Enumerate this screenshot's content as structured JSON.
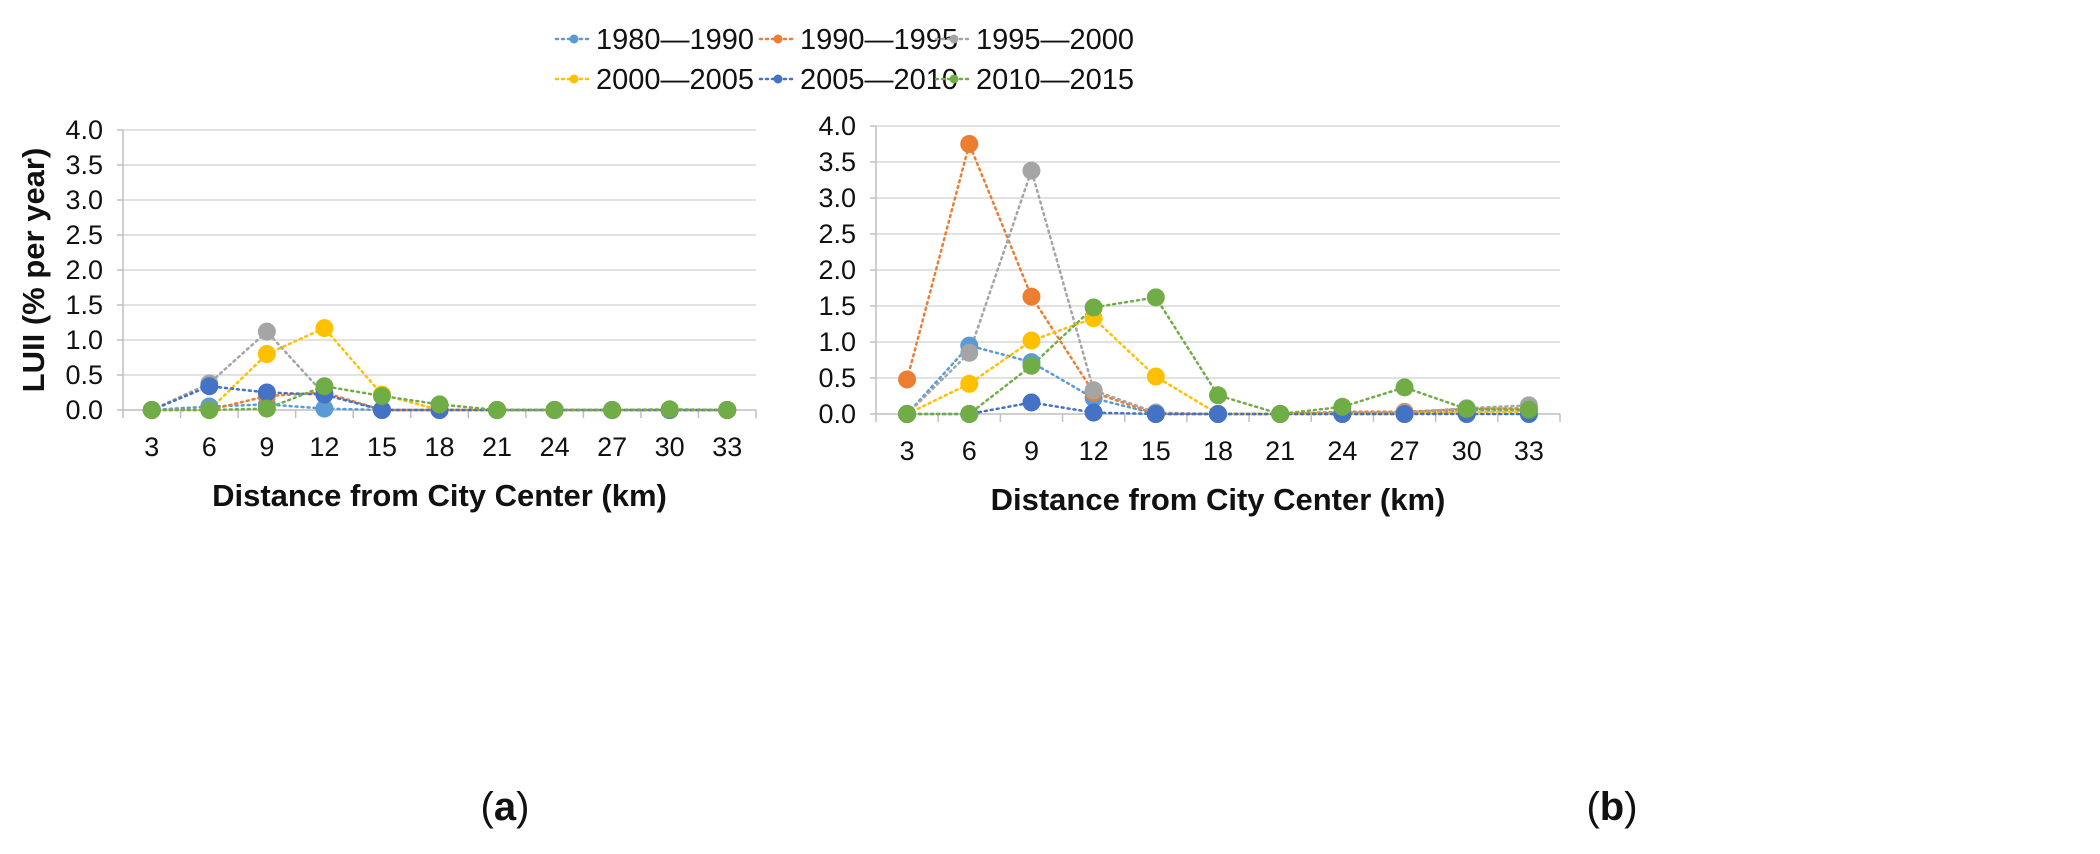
{
  "figure": {
    "panel_labels": [
      {
        "open": "(",
        "letter": "a",
        "close": ")"
      },
      {
        "open": "(",
        "letter": "b",
        "close": ")"
      }
    ]
  },
  "legend": {
    "position": "top-center",
    "entries": [
      "1980—1990",
      "1990—1995",
      "1995—2000",
      "2000—2005",
      "2005—2010",
      "2010—2015"
    ]
  },
  "colors": {
    "1980—1990": "#5b9bd5",
    "1990—1995": "#ed7d31",
    "1995—2000": "#a5a5a5",
    "2000—2005": "#ffc000",
    "2005—2010": "#4472c4",
    "2010—2015": "#70ad47",
    "grid": "#d9d9d9",
    "axis": "#bfbfbf"
  },
  "chart_data": [
    {
      "type": "line",
      "panel": "a",
      "title": "",
      "xlabel": "Distance from City Center (km)",
      "ylabel": "LUII (% per year)",
      "x": [
        3,
        6,
        9,
        12,
        15,
        18,
        21,
        24,
        27,
        30,
        33
      ],
      "ylim": [
        0,
        4
      ],
      "yticks": [
        "0.0",
        "0.5",
        "1.0",
        "1.5",
        "2.0",
        "2.5",
        "3.0",
        "3.5",
        "4.0"
      ],
      "grid": true,
      "line_style": "dotted",
      "series": [
        {
          "name": "1980—1990",
          "values": [
            0,
            0.05,
            0.08,
            0.02,
            0,
            0,
            0,
            0,
            0,
            0,
            0
          ]
        },
        {
          "name": "1990—1995",
          "values": [
            0,
            0,
            0.2,
            0.25,
            0,
            0,
            0,
            0,
            0,
            0,
            0
          ]
        },
        {
          "name": "1995—2000",
          "values": [
            0,
            0.38,
            1.12,
            0.22,
            0,
            0,
            0,
            0,
            0,
            0,
            0
          ]
        },
        {
          "name": "2000—2005",
          "values": [
            0,
            0,
            0.8,
            1.17,
            0.22,
            0,
            0,
            0,
            0,
            0,
            0
          ]
        },
        {
          "name": "2005—2010",
          "values": [
            0,
            0.34,
            0.25,
            0.22,
            0,
            0,
            0,
            0,
            0,
            0,
            0
          ]
        },
        {
          "name": "2010—2015",
          "values": [
            0,
            0,
            0.02,
            0.34,
            0.2,
            0.08,
            0,
            0,
            0,
            0.01,
            0
          ]
        }
      ]
    },
    {
      "type": "line",
      "panel": "b",
      "title": "",
      "xlabel": "Distance from City Center (km)",
      "ylabel": "",
      "x": [
        3,
        6,
        9,
        12,
        15,
        18,
        21,
        24,
        27,
        30,
        33
      ],
      "ylim": [
        0,
        4
      ],
      "yticks": [
        "0.0",
        "0.5",
        "1.0",
        "1.5",
        "2.0",
        "2.5",
        "3.0",
        "3.5",
        "4.0"
      ],
      "grid": true,
      "line_style": "dotted",
      "series": [
        {
          "name": "1980—1990",
          "values": [
            0,
            0.95,
            0.72,
            0.22,
            0,
            0,
            0,
            0,
            0,
            0.05,
            0.05
          ]
        },
        {
          "name": "1990—1995",
          "values": [
            0.48,
            3.75,
            1.63,
            0.3,
            0,
            0,
            0,
            0.03,
            0.03,
            0.07,
            0.08
          ]
        },
        {
          "name": "1995—2000",
          "values": [
            0,
            0.85,
            3.38,
            0.33,
            0.02,
            0,
            0,
            0.02,
            0.02,
            0.08,
            0.12
          ]
        },
        {
          "name": "2000—2005",
          "values": [
            0,
            0.42,
            1.02,
            1.33,
            0.52,
            0,
            0,
            0,
            0,
            0.03,
            0.03
          ]
        },
        {
          "name": "2005—2010",
          "values": [
            0,
            0,
            0.16,
            0.02,
            0,
            0,
            0,
            0,
            0,
            0,
            0
          ]
        },
        {
          "name": "2010—2015",
          "values": [
            0,
            0,
            0.67,
            1.48,
            1.62,
            0.26,
            0,
            0.1,
            0.37,
            0.07,
            0.06
          ]
        }
      ]
    }
  ]
}
